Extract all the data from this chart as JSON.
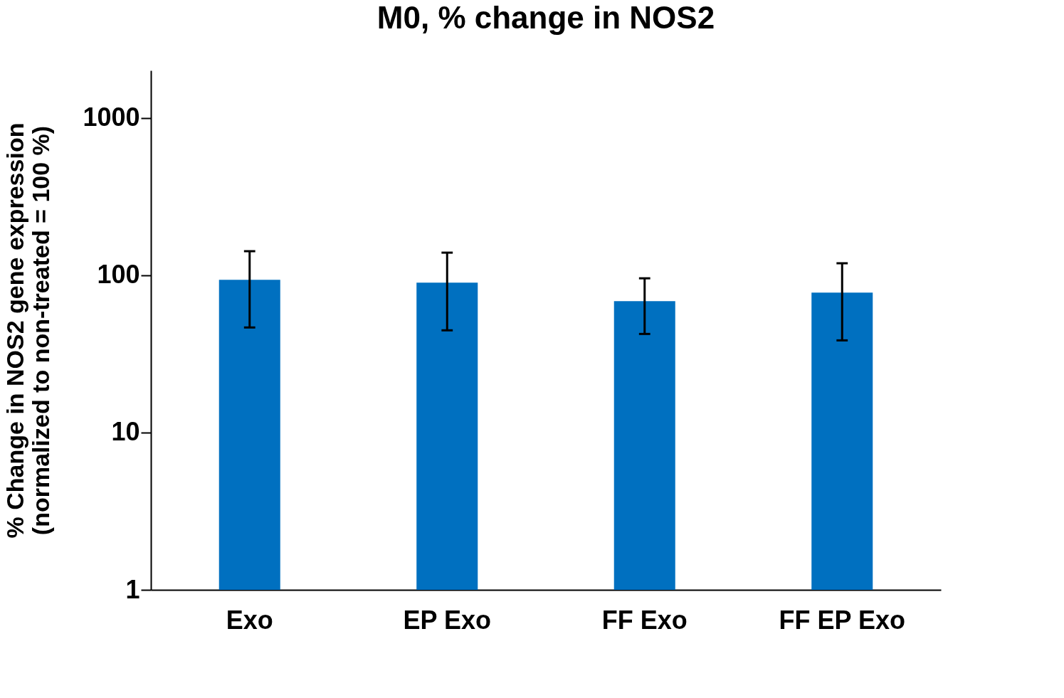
{
  "chart_data": {
    "type": "bar",
    "title": "M0, % change in NOS2",
    "ylabel": "% Change in NOS2 gene expression\n(normalized to non-treated = 100 %)",
    "categories": [
      "Exo",
      "EP Exo",
      "FF Exo",
      "FF EP Exo"
    ],
    "values": [
      93.5,
      89.7,
      68.4,
      77.5
    ],
    "errors": [
      [
        46.5,
        142
      ],
      [
        44.6,
        139
      ],
      [
        42.3,
        95.5
      ],
      [
        38.5,
        119
      ]
    ],
    "color": "#0070c0",
    "log": "y",
    "ylim": [
      1,
      2000
    ],
    "yticks": [
      1,
      10,
      100,
      1000
    ],
    "grid": false
  }
}
